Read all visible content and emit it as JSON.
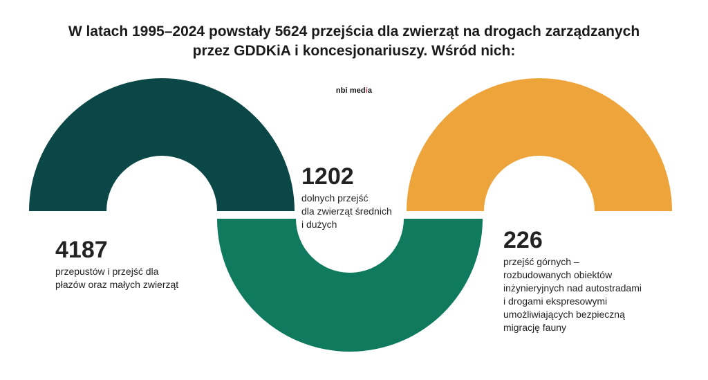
{
  "header": {
    "title_line1": "W latach 1995–2024 powstały 5624 przejścia dla zwierząt na drogach zarządzanych",
    "title_line2": "przez GDDKiA i koncesjonariuszy. Wśród nich:"
  },
  "brand": {
    "prefix": "nbi med",
    "highlight": "i",
    "suffix": "a",
    "accent_color": "#e63946"
  },
  "chart_data": {
    "type": "pie",
    "title": "W latach 1995–2024 powstały 5624 przejścia dla zwierząt na drogach zarządzanych przez GDDKiA i koncesjonariuszy. Wśród nich:",
    "total": 5624,
    "categories": [
      "przepustów i przejść dla płazów oraz małych zwierząt",
      "dolnych przejść dla zwierząt średnich i dużych",
      "przejść górnych – rozbudowanych obiektów inżynieryjnych nad autostradami i drogami ekspresowymi umożliwiających bezpieczną migrację fauny"
    ],
    "values": [
      4187,
      1202,
      226
    ],
    "colors": [
      "#0b4746",
      "#0f7a5e",
      "#eda43b"
    ]
  },
  "stats": [
    {
      "value": "4187",
      "text": "przepustów i przejść dla\npłazów oraz małych zwierząt"
    },
    {
      "value": "1202",
      "text": "dolnych przejść\ndla zwierząt średnich\ni dużych"
    },
    {
      "value": "226",
      "text": "przejść górnych –\nrozbudowanych obiektów\ninżynieryjnych nad autostradami\ni drogami ekspresowymi\numożliwiających bezpieczną\nmigrację fauny"
    }
  ]
}
